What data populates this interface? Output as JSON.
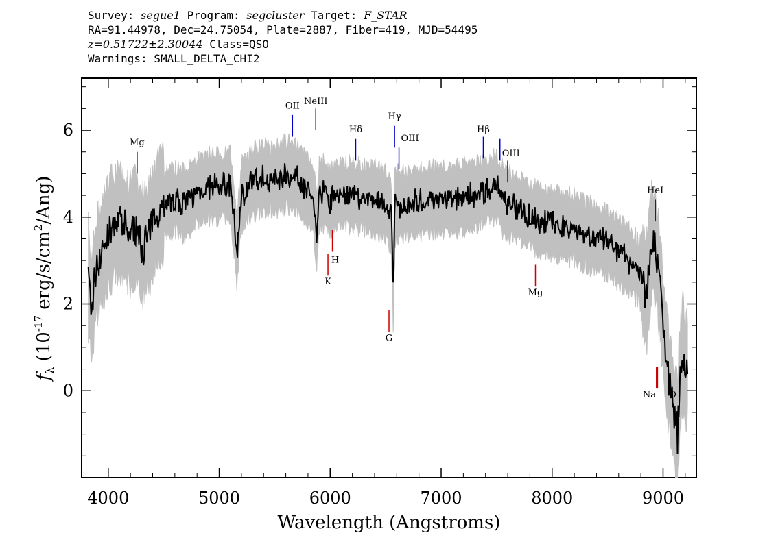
{
  "header": {
    "line1": {
      "survey_label": "Survey:",
      "survey": "segue1",
      "program_label": "Program:",
      "program": "segcluster",
      "target_label": "Target:",
      "target": "F_STAR"
    },
    "line2": "RA=91.44978, Dec=24.75054, Plate=2887, Fiber=419, MJD=54495",
    "line3": {
      "z": "z=0.51722±2.30044",
      "class": "Class=QSO"
    },
    "line4": "Warnings: SMALL_DELTA_CHI2"
  },
  "chart_data": {
    "type": "line",
    "xlabel": "Wavelength (Angstroms)",
    "ylabel": "f_λ (10^-17 erg/s/cm^2/Ang)",
    "xlim": [
      3760,
      9300
    ],
    "ylim": [
      -2.0,
      7.2
    ],
    "xticks": [
      4000,
      5000,
      6000,
      7000,
      8000,
      9000
    ],
    "yticks": [
      0,
      2,
      4,
      6
    ],
    "series": [
      {
        "color": "#000000",
        "x": [
          3820,
          3850,
          3880,
          3900,
          3950,
          4000,
          4050,
          4100,
          4150,
          4200,
          4250,
          4300,
          4350,
          4400,
          4450,
          4500,
          4600,
          4700,
          4800,
          4900,
          5000,
          5100,
          5160,
          5200,
          5300,
          5400,
          5500,
          5600,
          5700,
          5800,
          5850,
          5880,
          5900,
          5950,
          6000,
          6050,
          6100,
          6200,
          6300,
          6400,
          6500,
          6550,
          6560,
          6570,
          6580,
          6600,
          6700,
          6800,
          6900,
          7000,
          7100,
          7200,
          7300,
          7400,
          7500,
          7550,
          7600,
          7700,
          7800,
          7900,
          8000,
          8100,
          8200,
          8300,
          8400,
          8500,
          8600,
          8700,
          8800,
          8850,
          8880,
          8900,
          8930,
          8950,
          8980,
          9000,
          9050,
          9080,
          9100,
          9130,
          9150,
          9180,
          9200,
          9220
        ],
        "y": [
          2.6,
          1.8,
          2.6,
          2.9,
          3.2,
          3.6,
          3.8,
          3.9,
          3.7,
          3.6,
          3.8,
          3.3,
          3.5,
          3.8,
          4.2,
          4.3,
          4.4,
          4.3,
          4.6,
          4.7,
          4.7,
          4.75,
          3.2,
          4.5,
          4.8,
          4.9,
          4.85,
          5.0,
          4.9,
          4.6,
          4.4,
          3.6,
          4.5,
          4.55,
          4.35,
          4.5,
          4.55,
          4.5,
          4.45,
          4.4,
          4.3,
          4.0,
          3.2,
          2.0,
          4.2,
          4.3,
          4.3,
          4.35,
          4.4,
          4.4,
          4.4,
          4.45,
          4.5,
          4.6,
          4.7,
          4.4,
          4.3,
          4.2,
          4.05,
          3.9,
          3.85,
          3.8,
          3.75,
          3.6,
          3.5,
          3.4,
          3.2,
          3.0,
          2.7,
          2.2,
          3.0,
          3.5,
          3.3,
          3.0,
          2.2,
          1.5,
          0.3,
          -0.2,
          -0.6,
          -1.0,
          0.2,
          0.9,
          0.3,
          0.6
        ]
      }
    ],
    "error_band": {
      "color": "#c0c0c0",
      "halfwidth": 0.9
    },
    "annotations": [
      {
        "label": "Mg",
        "x": 4260,
        "color": "#0000cc",
        "y1": 5.0,
        "y2": 5.5,
        "ly": 5.65
      },
      {
        "label": "OII",
        "x": 5660,
        "color": "#0000cc",
        "y1": 5.85,
        "y2": 6.35,
        "ly": 6.5
      },
      {
        "label": "NeIII",
        "x": 5870,
        "color": "#0000cc",
        "y1": 6.0,
        "y2": 6.5,
        "ly": 6.6
      },
      {
        "label": "Hδ",
        "x": 6230,
        "color": "#0000cc",
        "y1": 5.3,
        "y2": 5.8,
        "ly": 5.95
      },
      {
        "label": "Hγ",
        "x": 6580,
        "color": "#0000cc",
        "y1": 5.6,
        "y2": 6.1,
        "ly": 6.25
      },
      {
        "label": "OIII",
        "x": 6620,
        "color": "#0000cc",
        "y1": 5.1,
        "y2": 5.6,
        "ly": 5.75
      },
      {
        "label": "Hβ",
        "x": 7380,
        "color": "#0000cc",
        "y1": 5.35,
        "y2": 5.85,
        "ly": 5.95
      },
      {
        "label": "OIII",
        "x": 7530,
        "color": "#0000cc",
        "y1": 5.3,
        "y2": 5.8,
        "ly": 5.4
      },
      {
        "label": "",
        "x": 7600,
        "color": "#0000cc",
        "y1": 4.8,
        "y2": 5.3,
        "ly": 5.3
      },
      {
        "label": "HeI",
        "x": 8930,
        "color": "#0000cc",
        "y1": 3.9,
        "y2": 4.4,
        "ly": 4.55
      },
      {
        "label": "H",
        "x": 6020,
        "color": "#cc0000",
        "y1": 3.2,
        "y2": 3.7,
        "ly": 2.95
      },
      {
        "label": "K",
        "x": 5980,
        "color": "#cc0000",
        "y1": 2.65,
        "y2": 3.15,
        "ly": 2.45
      },
      {
        "label": "G",
        "x": 6530,
        "color": "#cc0000",
        "y1": 1.35,
        "y2": 1.85,
        "ly": 1.15
      },
      {
        "label": "Mg",
        "x": 7850,
        "color": "#cc0000",
        "y1": 2.4,
        "y2": 2.9,
        "ly": 2.2
      },
      {
        "label": "Na",
        "x": 8950,
        "color": "#cc0000",
        "y1": 0.05,
        "y2": 0.55,
        "ly": -0.15
      },
      {
        "label": "D",
        "x": 8940,
        "color": "#cc0000",
        "y1": 0.05,
        "y2": 0.55,
        "ly": -0.15
      }
    ]
  }
}
